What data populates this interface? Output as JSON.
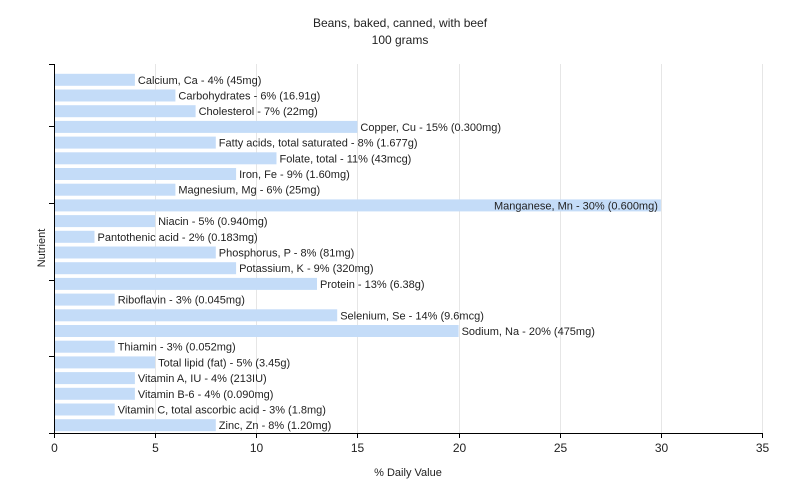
{
  "chart_data": {
    "type": "bar",
    "orientation": "horizontal",
    "title": "Beans, baked, canned, with beef",
    "subtitle": "100 grams",
    "xlabel": "% Daily Value",
    "ylabel": "Nutrient",
    "xlim": [
      0,
      35
    ],
    "xticks": [
      0,
      5,
      10,
      15,
      20,
      25,
      30,
      35
    ],
    "grid": true,
    "bar_color": "#c4dcf8",
    "categories": [
      "Calcium, Ca",
      "Carbohydrates",
      "Cholesterol",
      "Copper, Cu",
      "Fatty acids, total saturated",
      "Folate, total",
      "Iron, Fe",
      "Magnesium, Mg",
      "Manganese, Mn",
      "Niacin",
      "Pantothenic acid",
      "Phosphorus, P",
      "Potassium, K",
      "Protein",
      "Riboflavin",
      "Selenium, Se",
      "Sodium, Na",
      "Thiamin",
      "Total lipid (fat)",
      "Vitamin A, IU",
      "Vitamin B-6",
      "Vitamin C, total ascorbic acid",
      "Zinc, Zn"
    ],
    "values": [
      4,
      6,
      7,
      15,
      8,
      11,
      9,
      6,
      30,
      5,
      2,
      8,
      9,
      13,
      3,
      14,
      20,
      3,
      5,
      4,
      4,
      3,
      8
    ],
    "labels": [
      "Calcium, Ca - 4% (45mg)",
      "Carbohydrates - 6% (16.91g)",
      "Cholesterol - 7% (22mg)",
      "Copper, Cu - 15% (0.300mg)",
      "Fatty acids, total saturated - 8% (1.677g)",
      "Folate, total - 11% (43mcg)",
      "Iron, Fe - 9% (1.60mg)",
      "Magnesium, Mg - 6% (25mg)",
      "Manganese, Mn - 30% (0.600mg)",
      "Niacin - 5% (0.940mg)",
      "Pantothenic acid - 2% (0.183mg)",
      "Phosphorus, P - 8% (81mg)",
      "Potassium, K - 9% (320mg)",
      "Protein - 13% (6.38g)",
      "Riboflavin - 3% (0.045mg)",
      "Selenium, Se - 14% (9.6mcg)",
      "Sodium, Na - 20% (475mg)",
      "Thiamin - 3% (0.052mg)",
      "Total lipid (fat) - 5% (3.45g)",
      "Vitamin A, IU - 4% (213IU)",
      "Vitamin B-6 - 4% (0.090mg)",
      "Vitamin C, total ascorbic acid - 3% (1.8mg)",
      "Zinc, Zn - 8% (1.20mg)"
    ]
  }
}
